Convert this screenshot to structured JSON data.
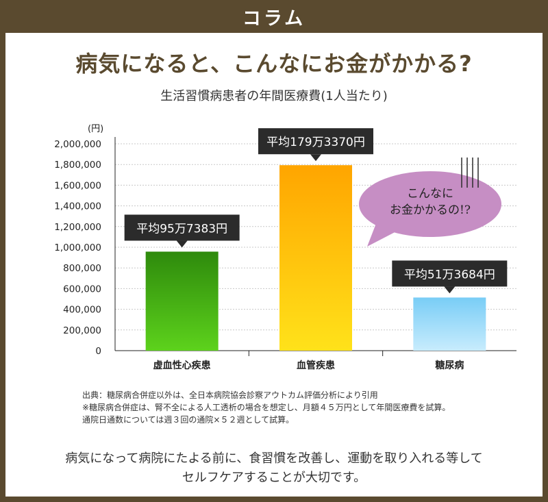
{
  "header": {
    "title": "コラム"
  },
  "main_title": "病気になると、こんなにお金がかかる?",
  "colors": {
    "brand": "#5a4a2f",
    "callout_bg": "#2b2b2b",
    "bubble": "#c68ec4"
  },
  "chart_data": {
    "type": "bar",
    "title": "生活習慣病患者の年間医療費(1人当たり)",
    "unit_label": "(円)",
    "categories": [
      "虚血性心疾患",
      "血管疾患",
      "糖尿病"
    ],
    "values": [
      957383,
      1793370,
      513684
    ],
    "data_labels": [
      "平均95万7383円",
      "平均179万3370円",
      "平均51万3684円"
    ],
    "y_ticks": [
      "0",
      "200,000",
      "400,000",
      "600,000",
      "800,000",
      "1,000,000",
      "1,200,000",
      "1,400,000",
      "1,600,000",
      "1,800,000",
      "2,000,000"
    ],
    "ylim": [
      0,
      2000000
    ],
    "grid": true,
    "bar_colors": [
      [
        "#5dd21c",
        "#2e8a0c"
      ],
      [
        "#ffe21a",
        "#ffa500"
      ],
      [
        "#c8ecfd",
        "#79cdf6"
      ]
    ],
    "annotation": {
      "lines": [
        "こんなに",
        "お金かかるの!?"
      ]
    }
  },
  "notes": [
    "出典：糖尿病合併症以外は、全日本病院協会診察アウトカム評価分析により引用",
    "※糖尿病合併症は、腎不全による人工透析の場合を想定し、月額４５万円として年間医療費を試算。",
    "通院日通数については週３回の通院×５２週として試算。"
  ],
  "footer": [
    "病気になって病院にたよる前に、食習慣を改善し、運動を取り入れる等して",
    "セルフケアすることが大切です。"
  ]
}
